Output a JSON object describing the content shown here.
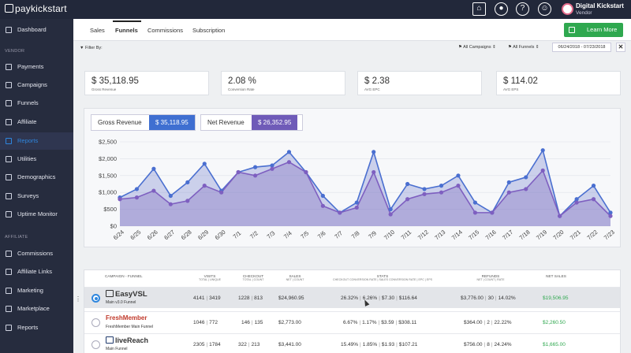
{
  "app": {
    "logo_text": "paykickstart"
  },
  "header": {
    "user_name": "Digital Kickstart",
    "user_role": "Vendor",
    "icons": [
      "store-icon",
      "user-icon",
      "help-icon",
      "support-icon"
    ]
  },
  "sidebar": {
    "dashboard": "Dashboard",
    "vendor_section": "VENDOR",
    "vendor_items": [
      "Payments",
      "Campaigns",
      "Funnels",
      "Affiliate",
      "Reports",
      "Utilities",
      "Demographics",
      "Surveys",
      "Uptime Monitor"
    ],
    "affiliate_section": "AFFILIATE",
    "affiliate_items": [
      "Commissions",
      "Affiliate Links",
      "Marketing",
      "Marketplace",
      "Reports"
    ],
    "active_item": "Reports"
  },
  "subnav": {
    "tabs": [
      "Sales",
      "Funnels",
      "Commissions",
      "Subscription"
    ],
    "active_tab": "Funnels",
    "learn_more": "Learn More"
  },
  "filters": {
    "label": "Filter By:",
    "campaigns": "All Campaigns",
    "funnels": "All Funnels",
    "date_range": "06/24/2018 - 07/23/2018",
    "close": "✕"
  },
  "stats": [
    {
      "value": "$ 35,118.95",
      "label": "Gross Revenue"
    },
    {
      "value": "2.08 %",
      "label": "Conversion Rate"
    },
    {
      "value": "$ 2.38",
      "label": "AVG EPC"
    },
    {
      "value": "$ 114.02",
      "label": "AVG EPS"
    }
  ],
  "revenue_toggle": {
    "gross_label": "Gross Revenue",
    "gross_value": "$ 35,118.95",
    "net_label": "Net Revenue",
    "net_value": "$ 26,352.95"
  },
  "chart_data": {
    "type": "area",
    "x": [
      "6/24",
      "6/25",
      "6/26",
      "6/27",
      "6/28",
      "6/29",
      "6/30",
      "7/1",
      "7/2",
      "7/3",
      "7/4",
      "7/5",
      "7/6",
      "7/7",
      "7/8",
      "7/9",
      "7/10",
      "7/11",
      "7/12",
      "7/13",
      "7/14",
      "7/15",
      "7/16",
      "7/17",
      "7/18",
      "7/19",
      "7/20",
      "7/21",
      "7/22",
      "7/23"
    ],
    "yticks": [
      "$0",
      "$500",
      "$1,000",
      "$1,500",
      "$2,000",
      "$2,500"
    ],
    "ylim": [
      0,
      2500
    ],
    "series": [
      {
        "values": [
          850,
          1100,
          1700,
          900,
          1300,
          1850,
          1050,
          1600,
          1750,
          1800,
          2200,
          1600,
          900,
          400,
          700,
          2200,
          500,
          1250,
          1100,
          1200,
          1500,
          700,
          400,
          1300,
          1450,
          2250,
          300,
          800,
          1200,
          400
        ]
      },
      {
        "values": [
          800,
          850,
          1050,
          650,
          750,
          1200,
          1000,
          1600,
          1500,
          1700,
          1900,
          1600,
          600,
          400,
          550,
          1600,
          350,
          800,
          950,
          1000,
          1200,
          400,
          400,
          1000,
          1100,
          1650,
          300,
          700,
          800,
          300
        ]
      }
    ],
    "colors": {
      "gross": "#4a6fd0",
      "net": "#7e5fc0"
    }
  },
  "table": {
    "headers": [
      {
        "main": "CAMPAIGN - FUNNEL",
        "sub": ""
      },
      {
        "main": "VISITS",
        "sub": "TOTAL | UNIQUE"
      },
      {
        "main": "CHECKOUT",
        "sub": "TOTAL | COUNT"
      },
      {
        "main": "SALES",
        "sub": "NET | COUNT"
      },
      {
        "main": "STATS",
        "sub": "CHECKOUT CONVERSION RATE | SALES CONVERSION RATE | EPC | EPS"
      },
      {
        "main": "REFUNDS",
        "sub": "NET | COUNT | RATE"
      },
      {
        "main": "NET SALES",
        "sub": ""
      }
    ],
    "rows": [
      {
        "brand": "EasyVSL",
        "funnel": "Main v3.0 Funnel",
        "visits": [
          "4141",
          "3419"
        ],
        "checkout": [
          "1228",
          "813"
        ],
        "sales": [
          "$24,960.95",
          ""
        ],
        "stats": [
          "26.32%",
          "6.26%",
          "$7.30",
          "$116.64"
        ],
        "refunds": [
          "$3,776.00",
          "30",
          "14.02%"
        ],
        "net_sales": "$19,506.95"
      },
      {
        "brand": "FreshMember",
        "funnel": "FreshMember Main Funnel",
        "visits": [
          "1046",
          "772"
        ],
        "checkout": [
          "146",
          "135"
        ],
        "sales": [
          "$2,773.00",
          ""
        ],
        "stats": [
          "6.67%",
          "1.17%",
          "$3.59",
          "$308.11"
        ],
        "refunds": [
          "$364.00",
          "2",
          "22.22%"
        ],
        "net_sales": "$2,260.50"
      },
      {
        "brand": "liveReach",
        "funnel": "Main Funnel",
        "visits": [
          "2305",
          "1784"
        ],
        "checkout": [
          "322",
          "213"
        ],
        "sales": [
          "$3,441.00",
          ""
        ],
        "stats": [
          "15.49%",
          "1.85%",
          "$1.93",
          "$107.21"
        ],
        "refunds": [
          "$756.00",
          "8",
          "24.24%"
        ],
        "net_sales": "$1,665.00"
      }
    ]
  }
}
